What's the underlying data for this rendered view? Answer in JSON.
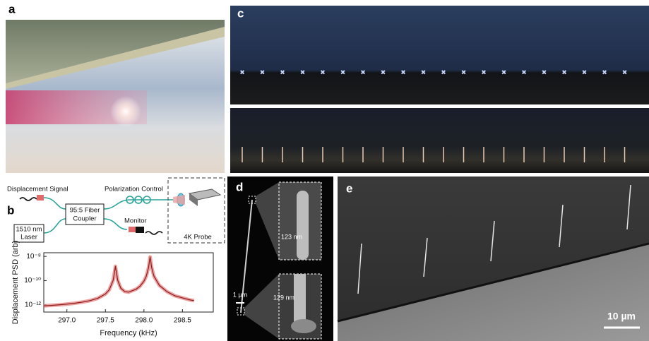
{
  "panel_labels": [
    "a",
    "b",
    "c",
    "d",
    "e"
  ],
  "schematic": {
    "displacement_signal": "Displacement Signal",
    "polarization_control": "Polarization Control",
    "coupler": [
      "95:5 Fiber",
      "Coupler"
    ],
    "laser": [
      "1510 nm",
      "Laser"
    ],
    "monitor": "Monitor",
    "probe": "4K Probe"
  },
  "sem": {
    "top_width": "123 nm",
    "bottom_width": "129 nm",
    "scale_bar": "1 µm"
  },
  "overview_scale_bar": "10 µm",
  "chart_data": {
    "type": "line",
    "xlabel": "Frequency (kHz)",
    "ylabel": "Displacement PSD (arb)",
    "log_y": true,
    "xlim": [
      296.7,
      298.9
    ],
    "xticks": [
      {
        "value": 297,
        "label": "297.0"
      },
      {
        "value": 297.5,
        "label": "297.5"
      },
      {
        "value": 298,
        "label": "298.0"
      },
      {
        "value": 298.5,
        "label": "298.5"
      }
    ],
    "ylim": [
      2.5e-13,
      2e-08
    ],
    "yticks": [
      {
        "value": 1e-08,
        "label": "10⁻⁸"
      },
      {
        "value": 1e-10,
        "label": "10⁻¹⁰"
      },
      {
        "value": 1e-12,
        "label": "10⁻¹²"
      }
    ],
    "x": [
      296.7,
      296.8,
      296.9,
      297.0,
      297.1,
      297.2,
      297.3,
      297.4,
      297.5,
      297.55,
      297.6,
      297.62,
      297.63,
      297.64,
      297.66,
      297.7,
      297.75,
      297.8,
      297.9,
      297.95,
      298.0,
      298.03,
      298.06,
      298.07,
      298.08,
      298.09,
      298.1,
      298.13,
      298.2,
      298.3,
      298.4,
      298.5,
      298.6,
      298.65
    ],
    "series": [
      {
        "color": "#8a1c1c",
        "band_color": "#e88a8a",
        "values": [
          8.1e-13,
          8.9e-13,
          9.9e-13,
          1.13e-12,
          1.34e-12,
          1.66e-12,
          2.2e-12,
          3.4e-12,
          7.8e-12,
          1.75e-11,
          1.03e-10,
          5.9e-10,
          1.5e-09,
          5.9e-10,
          1.04e-10,
          2.33e-11,
          1.24e-11,
          1.1e-11,
          1.97e-11,
          3.5e-11,
          9e-11,
          2.3e-10,
          1.2e-09,
          3.5e-09,
          9e-09,
          3.5e-09,
          1.2e-09,
          2.3e-10,
          4e-11,
          1.2e-11,
          5.6e-12,
          3.7e-12,
          2.5e-12,
          2.2e-12
        ]
      }
    ]
  }
}
